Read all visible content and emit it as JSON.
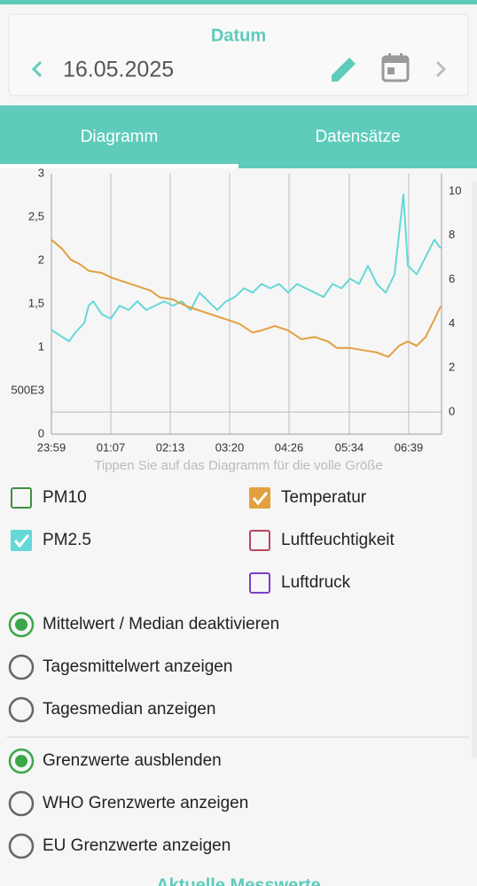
{
  "header": {
    "title": "Datum",
    "date": "16.05.2025"
  },
  "tabs": {
    "items": [
      "Diagramm",
      "Datensätze"
    ],
    "active": 0
  },
  "chart_data": {
    "type": "line",
    "xlim": [
      0,
      440
    ],
    "xticks": [
      {
        "value": 0,
        "label": "23:59"
      },
      {
        "value": 67,
        "label": "01:07"
      },
      {
        "value": 134,
        "label": "02:13"
      },
      {
        "value": 201,
        "label": "03:20"
      },
      {
        "value": 268,
        "label": "04:26"
      },
      {
        "value": 336,
        "label": "05:34"
      },
      {
        "value": 403,
        "label": "06:39"
      }
    ],
    "ylim": [
      0,
      3
    ],
    "yticks": [
      0,
      {
        "value": 0.5,
        "label": "500E3"
      },
      1,
      {
        "value": 1.5,
        "label": "1,5"
      },
      2,
      {
        "value": 2.5,
        "label": "2,5"
      },
      3
    ],
    "y2lim": [
      -1,
      10.8
    ],
    "y2ticks": [
      0,
      2,
      4,
      6,
      8,
      10
    ],
    "grid": true,
    "series": [
      {
        "name": "PM2.5",
        "color": "#66d8d8",
        "axis": "y",
        "x": [
          0,
          12,
          20,
          27,
          37,
          42,
          47,
          57,
          67,
          77,
          87,
          97,
          107,
          117,
          127,
          137,
          147,
          157,
          167,
          177,
          187,
          197,
          207,
          217,
          227,
          237,
          247,
          257,
          267,
          277,
          287,
          297,
          307,
          317,
          327,
          337,
          347,
          357,
          367,
          377,
          387,
          397,
          402,
          412,
          422,
          432,
          439
        ],
        "values": [
          1.2,
          1.12,
          1.07,
          1.17,
          1.28,
          1.48,
          1.53,
          1.38,
          1.33,
          1.48,
          1.43,
          1.53,
          1.43,
          1.48,
          1.53,
          1.48,
          1.53,
          1.43,
          1.63,
          1.53,
          1.43,
          1.53,
          1.58,
          1.68,
          1.63,
          1.73,
          1.68,
          1.73,
          1.63,
          1.73,
          1.68,
          1.63,
          1.58,
          1.73,
          1.68,
          1.79,
          1.73,
          1.94,
          1.73,
          1.63,
          1.84,
          2.76,
          1.94,
          1.84,
          2.04,
          2.24,
          2.14
        ]
      },
      {
        "name": "Temperatur",
        "color": "#e3a03e",
        "axis": "y2",
        "x": [
          0,
          12,
          22,
          32,
          42,
          57,
          67,
          82,
          97,
          112,
          122,
          137,
          152,
          167,
          182,
          197,
          212,
          227,
          237,
          252,
          267,
          282,
          297,
          312,
          322,
          337,
          352,
          367,
          380,
          392,
          402,
          412,
          422,
          432,
          439
        ],
        "values": [
          7.8,
          7.4,
          6.9,
          6.7,
          6.4,
          6.3,
          6.1,
          5.9,
          5.7,
          5.5,
          5.2,
          5.1,
          4.8,
          4.6,
          4.4,
          4.2,
          4.0,
          3.6,
          3.7,
          3.9,
          3.7,
          3.3,
          3.4,
          3.2,
          2.9,
          2.9,
          2.8,
          2.7,
          2.5,
          3.0,
          3.2,
          3.0,
          3.4,
          4.2,
          4.8
        ]
      }
    ]
  },
  "hint": "Tippen Sie auf das Diagramm für die volle Größe",
  "hidden_series": [
    {
      "name": "PM10",
      "color": "#3f8f3f"
    },
    {
      "name": "Luftfeuchtigkeit",
      "color": "#b5475e"
    },
    {
      "name": "Luftdruck",
      "color": "#7a3fc8"
    }
  ],
  "radio_groups": [
    {
      "options": [
        "Mittelwert / Median deaktivieren",
        "Tagesmittelwert anzeigen",
        "Tagesmedian anzeigen"
      ],
      "selected": 0
    },
    {
      "options": [
        "Grenzwerte ausblenden",
        "WHO Grenzwerte anzeigen",
        "EU Grenzwerte anzeigen"
      ],
      "selected": 0
    }
  ],
  "footer_title": "Aktuelle Messwerte"
}
